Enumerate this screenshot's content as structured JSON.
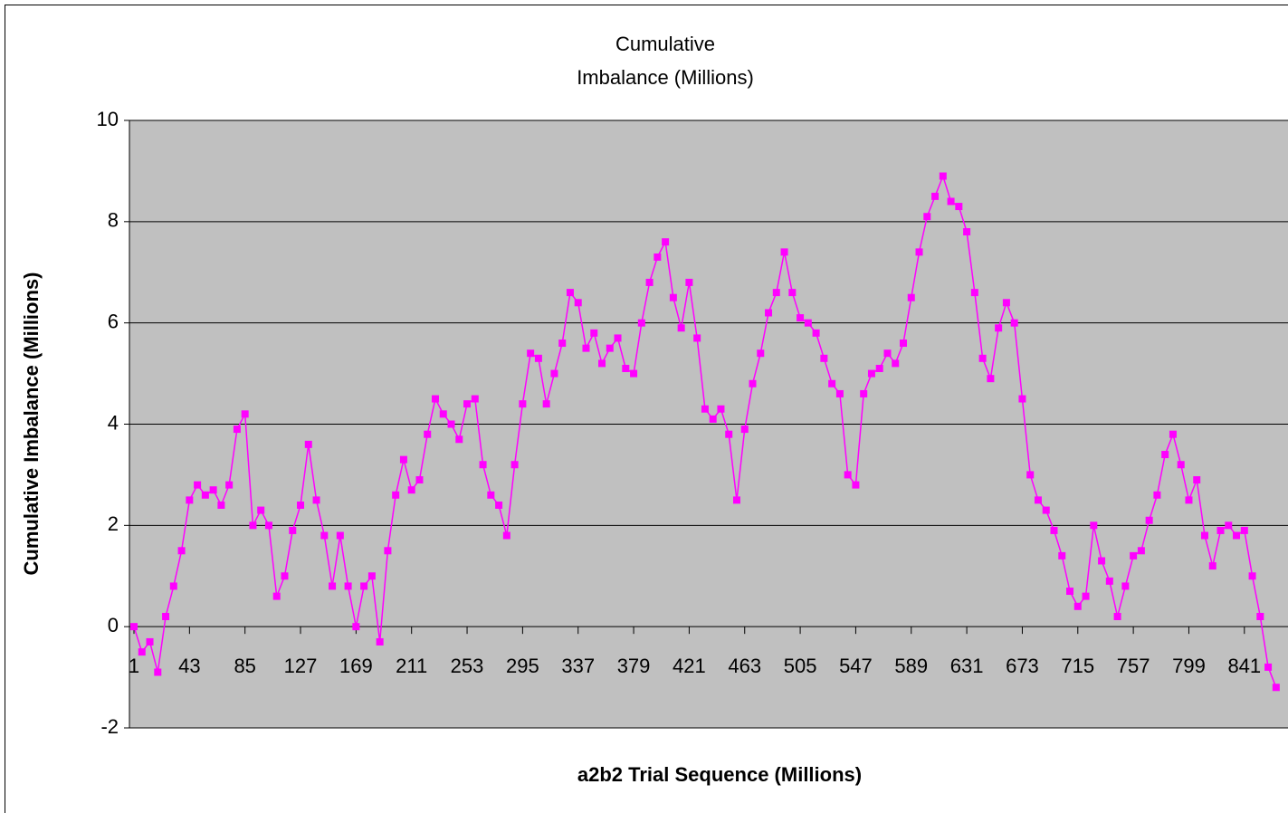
{
  "chart_data": {
    "type": "line",
    "title": [
      "Cumulative",
      "Imbalance (Millions)"
    ],
    "x_label": "a2b2 Trial Sequence (Millions)",
    "y_label": "Cumulative Imbalance (Millions)",
    "x": [
      1,
      7,
      13,
      19,
      25,
      31,
      37,
      43,
      49,
      55,
      61,
      67,
      73,
      79,
      85,
      91,
      97,
      103,
      109,
      115,
      121,
      127,
      133,
      139,
      145,
      151,
      157,
      163,
      169,
      175,
      181,
      187,
      193,
      199,
      205,
      211,
      217,
      223,
      229,
      235,
      241,
      247,
      253,
      259,
      265,
      271,
      277,
      283,
      289,
      295,
      301,
      307,
      313,
      319,
      325,
      331,
      337,
      343,
      349,
      355,
      361,
      367,
      373,
      379,
      385,
      391,
      397,
      403,
      409,
      415,
      421,
      427,
      433,
      439,
      445,
      451,
      457,
      463,
      469,
      475,
      481,
      487,
      493,
      499,
      505,
      511,
      517,
      523,
      529,
      535,
      541,
      547,
      553,
      559,
      565,
      571,
      577,
      583,
      589,
      595,
      601,
      607,
      613,
      619,
      625,
      631,
      637,
      643,
      649,
      655,
      661,
      667,
      673,
      679,
      685,
      691,
      697,
      703,
      709,
      715,
      721,
      727,
      733,
      739,
      745,
      751,
      757,
      763,
      769,
      775,
      781,
      787,
      793,
      799,
      805,
      811,
      817,
      823,
      829,
      835,
      841,
      847,
      853,
      859,
      865
    ],
    "series": [
      {
        "name": "Cumulative Imbalance",
        "color": "#ff00ff",
        "values": [
          0,
          -0.5,
          -0.3,
          -0.9,
          0.2,
          0.8,
          1.5,
          2.5,
          2.8,
          2.6,
          2.7,
          2.4,
          2.8,
          3.9,
          4.2,
          2.0,
          2.3,
          2.0,
          0.6,
          1.0,
          1.9,
          2.4,
          3.6,
          2.5,
          1.8,
          0.8,
          1.8,
          0.8,
          0.0,
          0.8,
          1.0,
          -0.3,
          1.5,
          2.6,
          3.3,
          2.7,
          2.9,
          3.8,
          4.5,
          4.2,
          4.0,
          3.7,
          4.4,
          4.5,
          3.2,
          2.6,
          2.4,
          1.8,
          3.2,
          4.4,
          5.4,
          5.3,
          4.4,
          5.0,
          5.6,
          6.6,
          6.4,
          5.5,
          5.8,
          5.2,
          5.5,
          5.7,
          5.1,
          5.0,
          6.0,
          6.8,
          7.3,
          7.6,
          6.5,
          5.9,
          6.8,
          5.7,
          4.3,
          4.1,
          4.3,
          3.8,
          2.5,
          3.9,
          4.8,
          5.4,
          6.2,
          6.6,
          7.4,
          6.6,
          6.1,
          6.0,
          5.8,
          5.3,
          4.8,
          4.6,
          3.0,
          2.8,
          4.6,
          5.0,
          5.1,
          5.4,
          5.2,
          5.6,
          6.5,
          7.4,
          8.1,
          8.5,
          8.9,
          8.4,
          8.3,
          7.8,
          6.6,
          5.3,
          4.9,
          5.9,
          6.4,
          6.0,
          4.5,
          3.0,
          2.5,
          2.3,
          1.9,
          1.4,
          0.7,
          0.4,
          0.6,
          2.0,
          1.3,
          0.9,
          0.2,
          0.8,
          1.4,
          1.5,
          2.1,
          2.6,
          3.4,
          3.8,
          3.2,
          2.5,
          2.9,
          1.8,
          1.2,
          1.9,
          2.0,
          1.8,
          1.9,
          1.0,
          0.2,
          -0.8,
          -1.2
        ]
      }
    ],
    "xlim": [
      1,
      874
    ],
    "xticks": [
      1,
      43,
      85,
      127,
      169,
      211,
      253,
      295,
      337,
      379,
      421,
      463,
      505,
      547,
      589,
      631,
      673,
      715,
      757,
      799,
      841
    ],
    "ylim": [
      -2,
      10
    ],
    "yticks": [
      -2,
      0,
      2,
      4,
      6,
      8,
      10
    ],
    "grid": true,
    "plot_background": "#c0c0c0"
  }
}
